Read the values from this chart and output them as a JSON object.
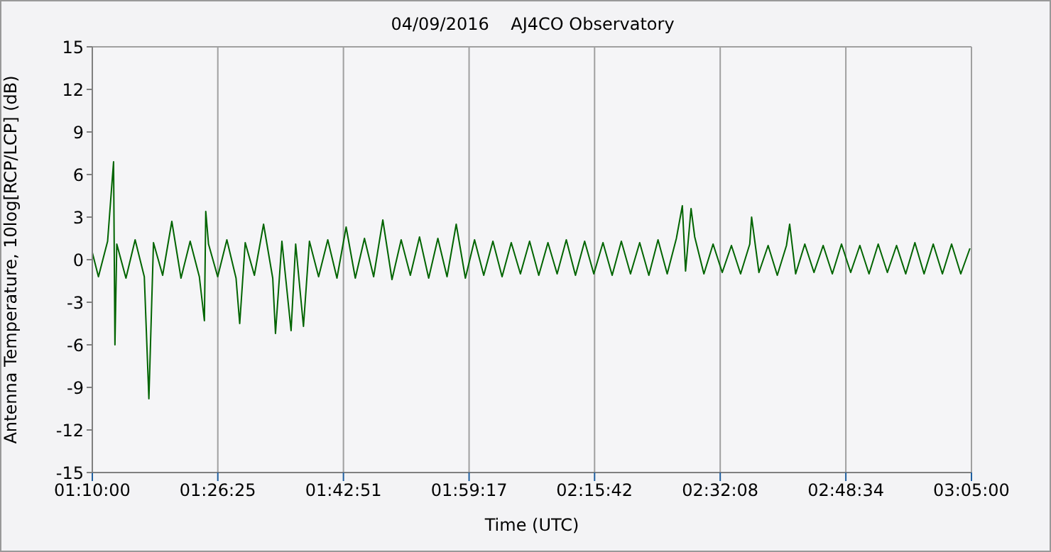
{
  "chart_data": {
    "type": "line",
    "title": "04/09/2016    AJ4CO Observatory",
    "xlabel": "Time (UTC)",
    "ylabel": "Antenna Temperature, 10log[RCP/LCP] (dB)",
    "xlim": [
      1.166667,
      3.083333
    ],
    "xticks": [
      {
        "value": 1.166667,
        "label": "01:10:00"
      },
      {
        "value": 1.440278,
        "label": "01:26:25"
      },
      {
        "value": 1.714167,
        "label": "01:42:51"
      },
      {
        "value": 1.988056,
        "label": "01:59:17"
      },
      {
        "value": 2.261667,
        "label": "02:15:42"
      },
      {
        "value": 2.535556,
        "label": "02:32:08"
      },
      {
        "value": 2.809444,
        "label": "02:48:34"
      },
      {
        "value": 3.083333,
        "label": "03:05:00"
      }
    ],
    "ylim": [
      -15,
      15
    ],
    "yticks": [
      -15,
      -12,
      -9,
      -6,
      -3,
      0,
      3,
      6,
      9,
      12,
      15
    ],
    "grid": true,
    "marker": "none",
    "line_style": "solid",
    "series": [
      {
        "color": "#006400",
        "x": [
          1.1667,
          1.18,
          1.2,
          1.213,
          1.216,
          1.22,
          1.24,
          1.26,
          1.28,
          1.29,
          1.3,
          1.32,
          1.34,
          1.36,
          1.38,
          1.4,
          1.411,
          1.414,
          1.42,
          1.44,
          1.46,
          1.48,
          1.488,
          1.5,
          1.52,
          1.54,
          1.56,
          1.566,
          1.58,
          1.6,
          1.61,
          1.627,
          1.64,
          1.66,
          1.68,
          1.7,
          1.72,
          1.74,
          1.76,
          1.78,
          1.8,
          1.82,
          1.84,
          1.86,
          1.88,
          1.9,
          1.92,
          1.94,
          1.96,
          1.98,
          2.0,
          2.02,
          2.04,
          2.06,
          2.08,
          2.1,
          2.12,
          2.14,
          2.16,
          2.18,
          2.2,
          2.22,
          2.24,
          2.26,
          2.28,
          2.3,
          2.32,
          2.34,
          2.36,
          2.38,
          2.4,
          2.42,
          2.44,
          2.453,
          2.46,
          2.472,
          2.48,
          2.5,
          2.52,
          2.54,
          2.56,
          2.58,
          2.6,
          2.604,
          2.62,
          2.64,
          2.66,
          2.68,
          2.687,
          2.7,
          2.72,
          2.74,
          2.76,
          2.78,
          2.8,
          2.82,
          2.84,
          2.86,
          2.88,
          2.9,
          2.92,
          2.94,
          2.96,
          2.98,
          3.0,
          3.02,
          3.04,
          3.06,
          3.08
        ],
        "values": [
          0.5,
          -1.2,
          1.3,
          6.9,
          -6.0,
          1.1,
          -1.3,
          1.4,
          -1.2,
          -9.8,
          1.2,
          -1.1,
          2.7,
          -1.3,
          1.3,
          -1.2,
          -4.3,
          3.4,
          1.1,
          -1.2,
          1.4,
          -1.3,
          -4.5,
          1.2,
          -1.1,
          2.5,
          -1.3,
          -5.2,
          1.3,
          -5.0,
          1.1,
          -4.7,
          1.3,
          -1.2,
          1.4,
          -1.3,
          2.3,
          -1.3,
          1.5,
          -1.2,
          2.8,
          -1.4,
          1.4,
          -1.1,
          1.6,
          -1.3,
          1.5,
          -1.2,
          2.5,
          -1.3,
          1.4,
          -1.1,
          1.3,
          -1.2,
          1.2,
          -1.0,
          1.3,
          -1.1,
          1.2,
          -1.0,
          1.4,
          -1.1,
          1.3,
          -1.0,
          1.2,
          -1.1,
          1.3,
          -1.0,
          1.2,
          -1.1,
          1.4,
          -1.0,
          1.5,
          3.8,
          -0.8,
          3.6,
          1.6,
          -1.0,
          1.1,
          -0.9,
          1.0,
          -1.0,
          1.1,
          3.0,
          -0.9,
          1.0,
          -1.1,
          1.0,
          2.5,
          -1.0,
          1.1,
          -0.9,
          1.0,
          -1.0,
          1.1,
          -0.9,
          1.0,
          -1.0,
          1.1,
          -0.9,
          1.0,
          -1.0,
          1.2,
          -1.0,
          1.1,
          -1.0,
          1.1,
          -1.0,
          0.8
        ]
      }
    ]
  }
}
